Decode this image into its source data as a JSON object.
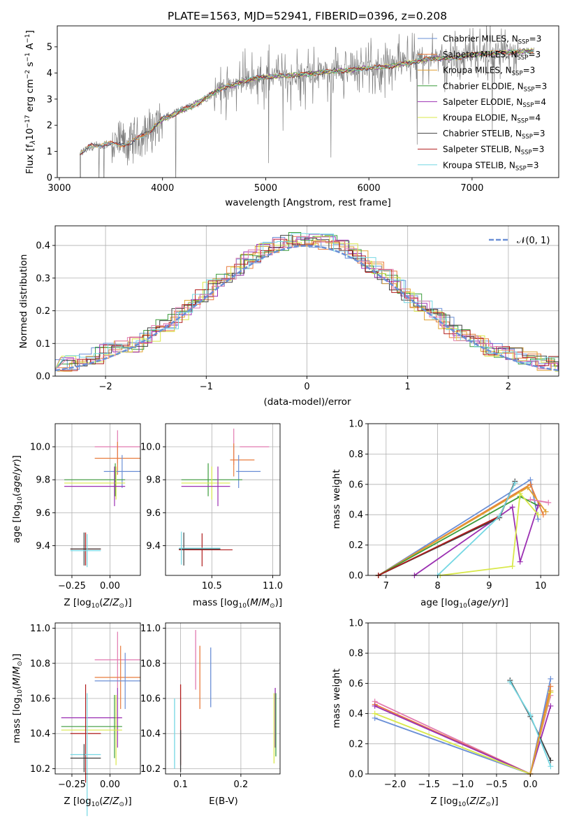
{
  "figure_title": "PLATE=1563, MJD=52941, FIBERID=0396, z=0.208",
  "colors": {
    "Chabrier MILES": "#6a8fd6",
    "Salpeter MILES": "#e87d3e",
    "Kroupa MILES": "#e0a030",
    "Chabrier ELODIE": "#3c9c3c",
    "Salpeter ELODIE": "#9b2fb2",
    "Kroupa ELODIE": "#d9e84a",
    "Chabrier STELIB": "#404040",
    "Salpeter STELIB": "#b01c1c",
    "Kroupa STELIB": "#74d7e3",
    "pink": "#e27ab0",
    "data": "#808080"
  },
  "chart_data": [
    {
      "id": "spectrum",
      "type": "line",
      "title": "PLATE=1563, MJD=52941, FIBERID=0396, z=0.208",
      "xlabel": "wavelength [Angstrom, rest frame]",
      "ylabel": "Flux [f_λ 10^-17 erg cm^-2 s^-1 A^-1]",
      "xlim": [
        2980,
        7840
      ],
      "ylim": [
        0,
        5.8
      ],
      "xticks": [
        "3000",
        "4000",
        "5000",
        "6000",
        "7000"
      ],
      "yticks": [
        "0",
        "1",
        "2",
        "3",
        "4",
        "5"
      ],
      "legend": [
        "Chabrier MILES, N_SSP=3",
        "Salpeter MILES, N_SSP=3",
        "Kroupa MILES, N_SSP=3",
        "Chabrier ELODIE, N_SSP=3",
        "Salpeter ELODIE, N_SSP=4",
        "Kroupa ELODIE, N_SSP=4",
        "Chabrier STELIB, N_SSP=3",
        "Salpeter STELIB, N_SSP=3",
        "Kroupa STELIB, N_SSP=3"
      ],
      "legend_loc": "upper right",
      "model_continuum": {
        "x": [
          3200,
          3300,
          3400,
          3500,
          3600,
          3700,
          3800,
          3900,
          4000,
          4100,
          4200,
          4300,
          4400,
          4500,
          4600,
          4700,
          4800,
          4900,
          5000,
          5200,
          5400,
          5600,
          5800,
          6000,
          6200,
          6400,
          6600,
          6800,
          7000,
          7200,
          7400,
          7600
        ],
        "y": [
          0.9,
          1.2,
          1.25,
          1.3,
          1.25,
          1.35,
          1.6,
          1.85,
          2.25,
          2.4,
          2.6,
          2.75,
          3.0,
          3.25,
          3.45,
          3.55,
          3.7,
          3.8,
          3.85,
          3.9,
          3.95,
          4.05,
          4.1,
          4.2,
          4.25,
          4.4,
          4.55,
          4.55,
          4.7,
          4.75,
          4.8,
          4.85
        ]
      },
      "grid": false
    },
    {
      "id": "residual_hist",
      "type": "line",
      "xlabel": "(data-model)/error",
      "ylabel": "Normed distribution",
      "xlim": [
        -2.5,
        2.5
      ],
      "ylim": [
        0,
        0.46
      ],
      "xticks": [
        "−2",
        "−1",
        "0",
        "1",
        "2"
      ],
      "yticks": [
        "0.0",
        "0.1",
        "0.2",
        "0.3",
        "0.4"
      ],
      "legend": [
        "𝒩(0, 1)"
      ],
      "legend_loc": "upper right",
      "grid": true,
      "reference_curve": "standard normal pdf"
    },
    {
      "id": "age_vs_Z",
      "type": "scatter",
      "xlabel": "Z [log10(Z/Z⊙)]",
      "ylabel": "age [log10(age/yr)]",
      "xlim": [
        -0.36,
        0.2
      ],
      "ylim": [
        9.22,
        10.14
      ],
      "xticks": [
        "−0.25",
        "0.00"
      ],
      "yticks": [
        "9.4",
        "9.6",
        "9.8",
        "10.0"
      ],
      "grid": true,
      "errorbars": [
        {
          "model": "pink",
          "x": 0.05,
          "xerr": 0.15,
          "y": 10.0,
          "yerr": 0.1
        },
        {
          "model": "Salpeter MILES",
          "x": 0.05,
          "xerr": 0.15,
          "y": 9.93,
          "yerr": 0.1
        },
        {
          "model": "Chabrier MILES",
          "x": 0.08,
          "xerr": 0.12,
          "y": 9.85,
          "yerr": 0.1
        },
        {
          "model": "Chabrier ELODIE",
          "x": -0.1,
          "xerr": 0.2,
          "y": 9.8,
          "yerr": 0.1
        },
        {
          "model": "Kroupa ELODIE",
          "x": -0.1,
          "xerr": 0.2,
          "y": 9.78,
          "yerr": 0.1
        },
        {
          "model": "Salpeter ELODIE",
          "x": -0.1,
          "xerr": 0.2,
          "y": 9.76,
          "yerr": 0.12
        },
        {
          "model": "Salpeter STELIB",
          "x": -0.16,
          "xerr": 0.1,
          "y": 9.38,
          "yerr": 0.1
        },
        {
          "model": "Chabrier STELIB",
          "x": -0.16,
          "xerr": 0.1,
          "y": 9.38,
          "yerr": 0.1
        },
        {
          "model": "Kroupa STELIB",
          "x": -0.16,
          "xerr": 0.1,
          "y": 9.37,
          "yerr": 0.1
        }
      ]
    },
    {
      "id": "age_vs_mass",
      "type": "scatter",
      "xlabel": "mass [log10(M/M⊙)]",
      "ylabel": "",
      "xlim": [
        10.12,
        11.06
      ],
      "ylim": [
        9.22,
        10.14
      ],
      "xticks": [
        "10.5",
        "11.0"
      ],
      "yticks": [
        "9.4",
        "9.6",
        "9.8",
        "10.0"
      ],
      "grid": true
    },
    {
      "id": "weight_vs_age",
      "type": "line",
      "xlabel": "age [log10(age/yr)]",
      "ylabel": "mass weight",
      "xlim": [
        6.65,
        10.35
      ],
      "ylim": [
        0,
        1.0
      ],
      "xticks": [
        "7",
        "8",
        "9",
        "10"
      ],
      "yticks": [
        "0.0",
        "0.2",
        "0.4",
        "0.6",
        "0.8",
        "1.0"
      ],
      "grid": true,
      "series": [
        {
          "model": "Chabrier MILES",
          "x": [
            6.85,
            9.8,
            9.95
          ],
          "y": [
            0.0,
            0.63,
            0.37
          ]
        },
        {
          "model": "Salpeter MILES",
          "x": [
            6.85,
            9.8,
            10.05
          ],
          "y": [
            0.0,
            0.6,
            0.4
          ]
        },
        {
          "model": "Kroupa MILES",
          "x": [
            6.85,
            9.75,
            10.1
          ],
          "y": [
            0.0,
            0.58,
            0.42
          ]
        },
        {
          "model": "Chabrier ELODIE",
          "x": [
            6.85,
            9.6,
            9.95
          ],
          "y": [
            0.0,
            0.52,
            0.46
          ]
        },
        {
          "model": "Salpeter ELODIE",
          "x": [
            7.55,
            9.45,
            9.6,
            9.95
          ],
          "y": [
            0.0,
            0.45,
            0.09,
            0.46
          ]
        },
        {
          "model": "Kroupa ELODIE",
          "x": [
            8.05,
            9.45,
            9.6,
            9.95
          ],
          "y": [
            0.0,
            0.06,
            0.54,
            0.4
          ]
        },
        {
          "model": "Chabrier STELIB",
          "x": [
            6.85,
            9.2,
            9.5
          ],
          "y": [
            0.0,
            0.38,
            0.62
          ]
        },
        {
          "model": "Salpeter STELIB",
          "x": [
            6.85,
            9.2,
            9.5
          ],
          "y": [
            0.0,
            0.39,
            0.61
          ]
        },
        {
          "model": "Kroupa STELIB",
          "x": [
            8.0,
            9.2,
            9.5
          ],
          "y": [
            0.0,
            0.39,
            0.61
          ]
        },
        {
          "model": "pink",
          "x": [
            9.8,
            10.15
          ],
          "y": [
            0.5,
            0.48
          ]
        }
      ]
    },
    {
      "id": "mass_vs_Z",
      "type": "scatter",
      "xlabel": "Z [log10(Z/Z⊙)]",
      "ylabel": "mass [log10(M/M⊙)]",
      "xlim": [
        -0.36,
        0.2
      ],
      "ylim": [
        10.17,
        11.03
      ],
      "xticks": [
        "−0.25",
        "0.00"
      ],
      "yticks": [
        "10.2",
        "10.4",
        "10.6",
        "10.8",
        "11.0"
      ],
      "grid": true
    },
    {
      "id": "mass_vs_ebv",
      "type": "scatter",
      "xlabel": "E(B-V)",
      "ylabel": "",
      "xlim": [
        0.075,
        0.265
      ],
      "ylim": [
        10.17,
        11.03
      ],
      "xticks": [
        "0.1",
        "0.2"
      ],
      "yticks": [
        "10.2",
        "10.4",
        "10.6",
        "10.8",
        "11.0"
      ],
      "grid": true,
      "errorbars": [
        {
          "model": "Kroupa STELIB",
          "x": 0.09,
          "y": 10.4,
          "yerr": 0.2
        },
        {
          "model": "Salpeter STELIB",
          "x": 0.1,
          "y": 10.45,
          "yerr": 0.23
        },
        {
          "model": "Chabrier STELIB",
          "x": 0.1,
          "y": 10.3,
          "yerr": 0.12
        },
        {
          "model": "pink",
          "x": 0.125,
          "y": 10.82,
          "yerr": 0.17
        },
        {
          "model": "Salpeter MILES",
          "x": 0.132,
          "y": 10.72,
          "yerr": 0.18
        },
        {
          "model": "Chabrier MILES",
          "x": 0.15,
          "y": 10.72,
          "yerr": 0.17
        },
        {
          "model": "Salpeter ELODIE",
          "x": 0.257,
          "y": 10.49,
          "yerr": 0.17
        },
        {
          "model": "Kroupa ELODIE",
          "x": 0.255,
          "y": 10.43,
          "yerr": 0.2
        },
        {
          "model": "Chabrier ELODIE",
          "x": 0.258,
          "y": 10.45,
          "yerr": 0.18
        }
      ]
    },
    {
      "id": "weight_vs_Z",
      "type": "line",
      "xlabel": "Z [log10(Z/Z⊙)]",
      "ylabel": "mass weight",
      "xlim": [
        -2.4,
        0.42
      ],
      "ylim": [
        0,
        1.0
      ],
      "xticks": [
        "−2.0",
        "−1.5",
        "−1.0",
        "−0.5",
        "0.0"
      ],
      "yticks": [
        "0.0",
        "0.2",
        "0.4",
        "0.6",
        "0.8",
        "1.0"
      ],
      "grid": true,
      "series": [
        {
          "model": "Chabrier MILES",
          "x": [
            -2.3,
            0.0,
            0.3
          ],
          "y": [
            0.37,
            0.0,
            0.63
          ]
        },
        {
          "model": "pink",
          "x": [
            -2.3,
            0.0,
            0.3
          ],
          "y": [
            0.48,
            0.0,
            0.52
          ]
        },
        {
          "model": "Salpeter MILES",
          "x": [
            -2.3,
            0.0,
            0.3
          ],
          "y": [
            0.46,
            0.0,
            0.58
          ]
        },
        {
          "model": "Salpeter ELODIE",
          "x": [
            -2.3,
            0.0,
            0.3
          ],
          "y": [
            0.45,
            0.0,
            0.45
          ]
        },
        {
          "model": "Kroupa ELODIE",
          "x": [
            -2.3,
            0.0,
            0.3
          ],
          "y": [
            0.4,
            0.0,
            0.54
          ]
        },
        {
          "model": "Chabrier STELIB",
          "x": [
            -0.3,
            0.0,
            0.3
          ],
          "y": [
            0.62,
            0.38,
            0.09
          ]
        },
        {
          "model": "Kroupa STELIB",
          "x": [
            -0.3,
            0.0,
            0.3
          ],
          "y": [
            0.61,
            0.39,
            0.05
          ]
        },
        {
          "model": "Kroupa MILES",
          "x": [
            0.0,
            0.3
          ],
          "y": [
            0.0,
            0.55
          ]
        }
      ]
    }
  ]
}
